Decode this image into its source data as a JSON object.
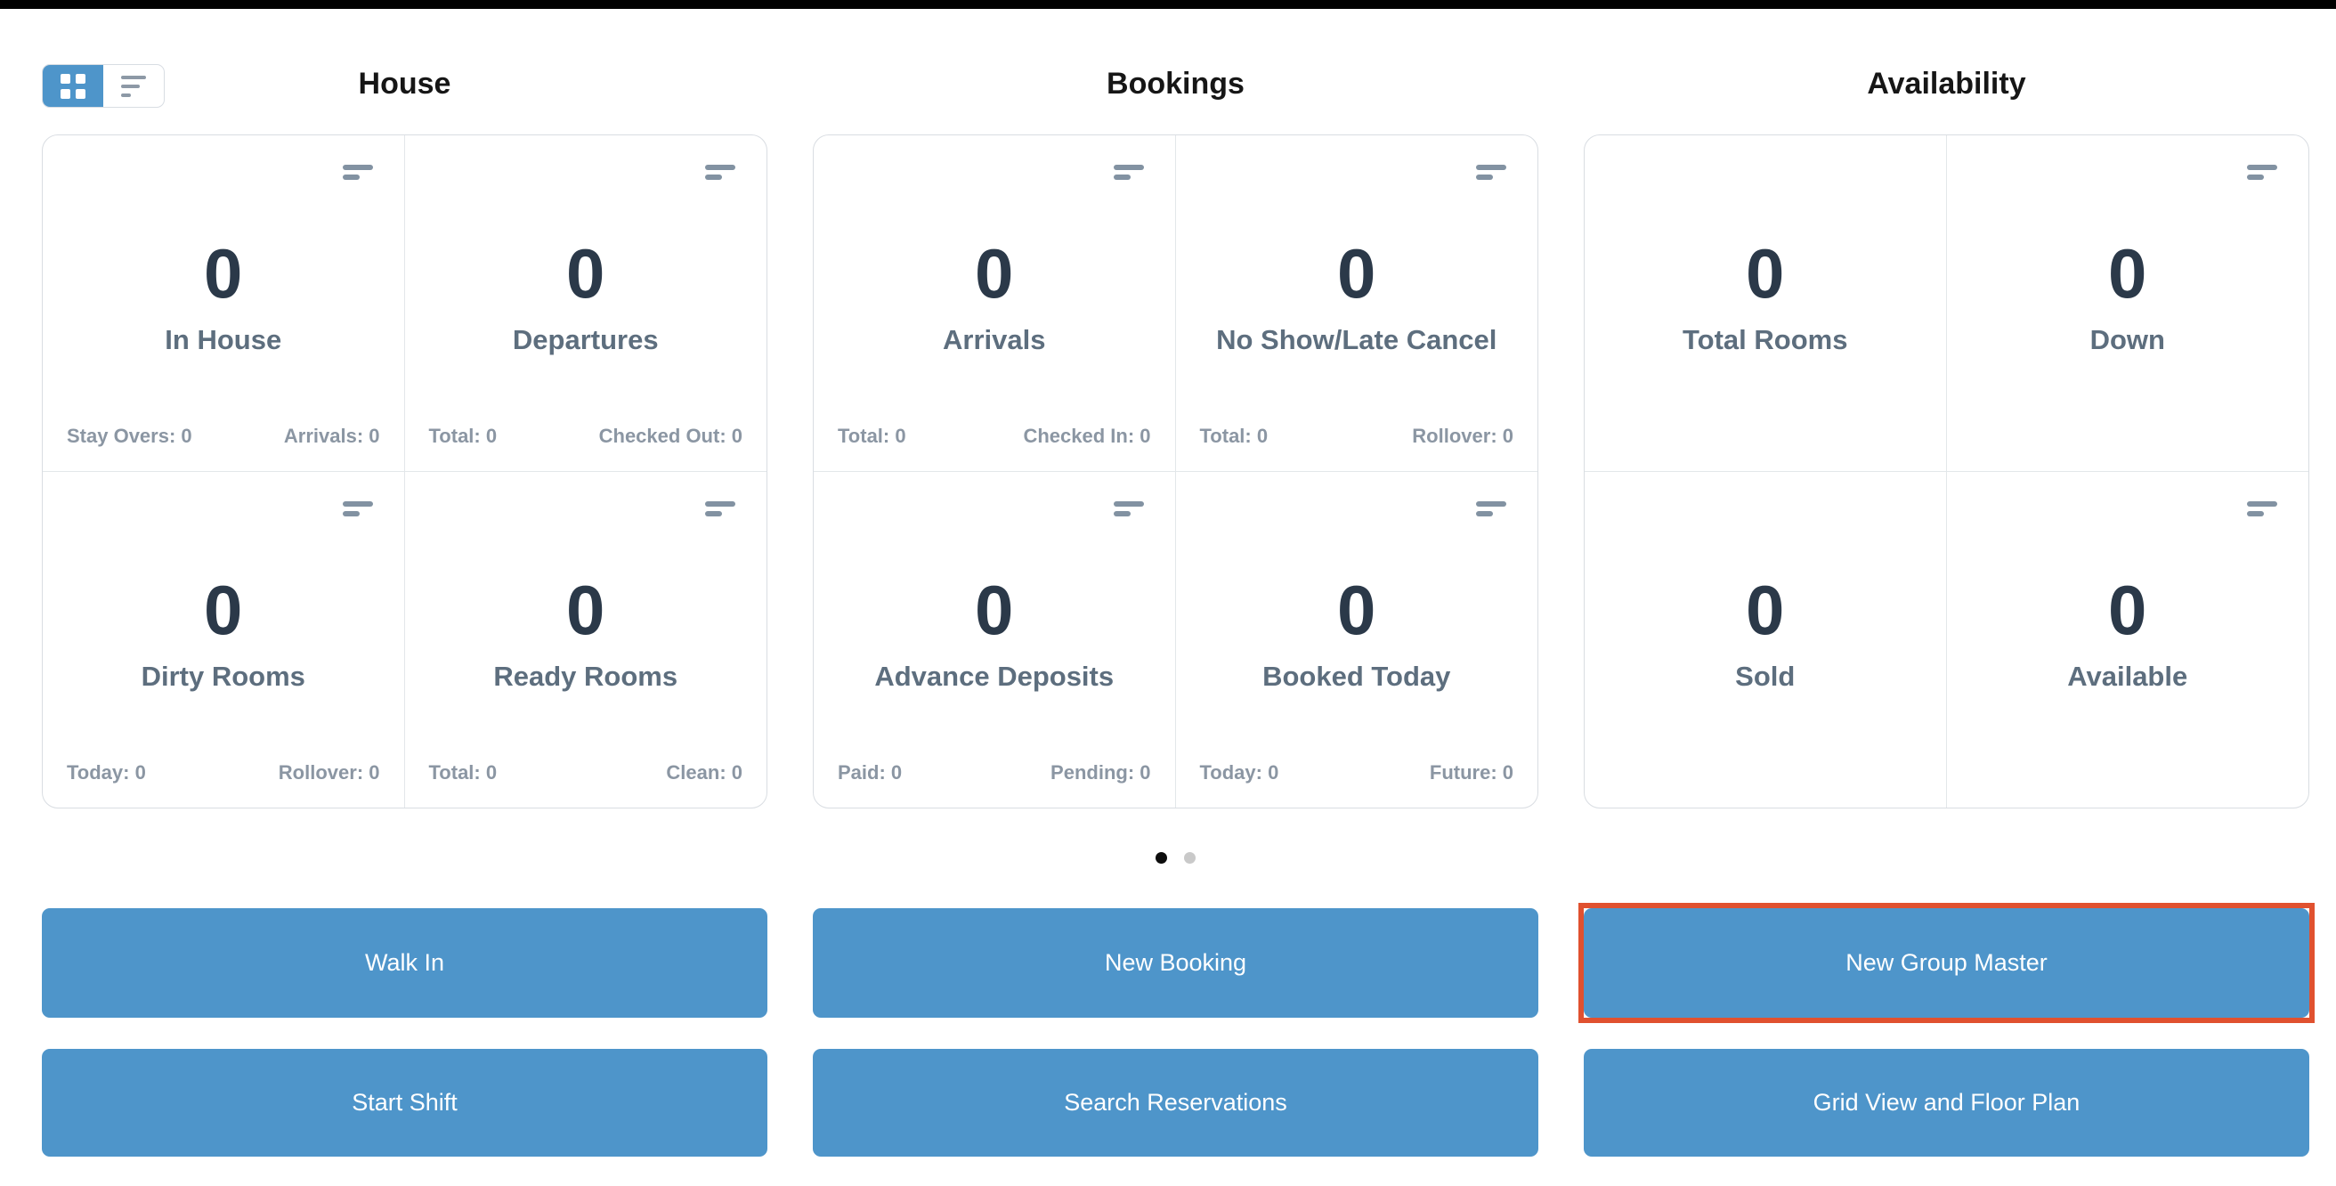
{
  "view_toggle": {
    "grid_view_selected": true,
    "options": [
      "grid-view",
      "list-view"
    ]
  },
  "columns": [
    {
      "title": "House",
      "cards": [
        {
          "value": "0",
          "label": "In House",
          "footer_left": "Stay Overs: 0",
          "footer_right": "Arrivals: 0",
          "menu_icon": true
        },
        {
          "value": "0",
          "label": "Departures",
          "footer_left": "Total: 0",
          "footer_right": "Checked Out: 0",
          "menu_icon": true
        },
        {
          "value": "0",
          "label": "Dirty Rooms",
          "footer_left": "Today: 0",
          "footer_right": "Rollover: 0",
          "menu_icon": true
        },
        {
          "value": "0",
          "label": "Ready Rooms",
          "footer_left": "Total: 0",
          "footer_right": "Clean: 0",
          "menu_icon": true
        }
      ]
    },
    {
      "title": "Bookings",
      "cards": [
        {
          "value": "0",
          "label": "Arrivals",
          "footer_left": "Total: 0",
          "footer_right": "Checked In: 0",
          "menu_icon": true
        },
        {
          "value": "0",
          "label": "No Show/Late Cancel",
          "footer_left": "Total: 0",
          "footer_right": "Rollover: 0",
          "menu_icon": true
        },
        {
          "value": "0",
          "label": "Advance Deposits",
          "footer_left": "Paid: 0",
          "footer_right": "Pending: 0",
          "menu_icon": true
        },
        {
          "value": "0",
          "label": "Booked Today",
          "footer_left": "Today: 0",
          "footer_right": "Future: 0",
          "menu_icon": true
        }
      ]
    },
    {
      "title": "Availability",
      "cards": [
        {
          "value": "0",
          "label": "Total Rooms",
          "menu_icon": false
        },
        {
          "value": "0",
          "label": "Down",
          "menu_icon": true
        },
        {
          "value": "0",
          "label": "Sold",
          "menu_icon": false
        },
        {
          "value": "0",
          "label": "Available",
          "menu_icon": true
        }
      ]
    }
  ],
  "pagination": {
    "active_page": 1,
    "page_count": 2
  },
  "actions": {
    "row1": [
      {
        "label": "Walk In",
        "highlighted": false
      },
      {
        "label": "New Booking",
        "highlighted": false
      },
      {
        "label": "New Group Master",
        "highlighted": true
      }
    ],
    "row2": [
      {
        "label": "Start Shift",
        "highlighted": false
      },
      {
        "label": "Search Reservations",
        "highlighted": false
      },
      {
        "label": "Grid View and Floor Plan",
        "highlighted": false
      }
    ]
  },
  "colors": {
    "accent_blue": "#4e95ca",
    "highlight_red": "#e0512f",
    "stat_number": "#2b3949",
    "stat_label": "#5d6e7e",
    "stat_footer": "#8b96a3",
    "dot_active": "#0d0d0d",
    "dot_inactive": "#c9c9c9",
    "top_bar": "#000000"
  }
}
